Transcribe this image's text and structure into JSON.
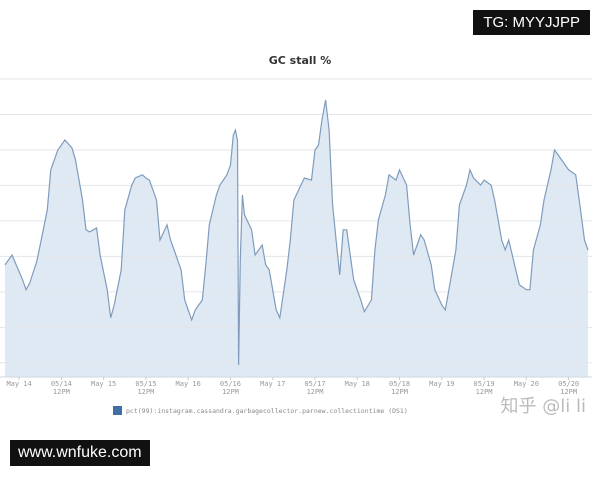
{
  "watermarks": {
    "top_right": "TG: MYYJJPP",
    "bottom_left": "www.wnfuke.com",
    "corner": "知乎 @li li"
  },
  "colors": {
    "line": "#7f9cbd",
    "fill": "#dfe9f3",
    "grid": "#e2e6ea",
    "legend_swatch": "#3f6fa3"
  },
  "chart_data": {
    "type": "area",
    "title": "GC stall %",
    "xlabel": "",
    "ylabel": "",
    "y_tick_labels_shown": false,
    "grid": true,
    "legend_placement": "bottom",
    "xlim": [
      "05/13 20:00",
      "05/20 17:30"
    ],
    "ylim": [
      0.6,
      9
    ],
    "y_gridlines": [
      1,
      2,
      3,
      4,
      5,
      6,
      7,
      8,
      9
    ],
    "x_ticks": [
      {
        "at": "05/14 00:00",
        "label": [
          "May 14"
        ]
      },
      {
        "at": "05/14 12:00",
        "label": [
          "05/14",
          "12PM"
        ]
      },
      {
        "at": "05/15 00:00",
        "label": [
          "May 15"
        ]
      },
      {
        "at": "05/15 12:00",
        "label": [
          "05/15",
          "12PM"
        ]
      },
      {
        "at": "05/16 00:00",
        "label": [
          "May 16"
        ]
      },
      {
        "at": "05/16 12:00",
        "label": [
          "05/16",
          "12PM"
        ]
      },
      {
        "at": "05/17 00:00",
        "label": [
          "May 17"
        ]
      },
      {
        "at": "05/17 12:00",
        "label": [
          "05/17",
          "12PM"
        ]
      },
      {
        "at": "05/18 00:00",
        "label": [
          "May 18"
        ]
      },
      {
        "at": "05/18 12:00",
        "label": [
          "05/18",
          "12PM"
        ]
      },
      {
        "at": "05/19 00:00",
        "label": [
          "May 19"
        ]
      },
      {
        "at": "05/19 12:00",
        "label": [
          "05/19",
          "12PM"
        ]
      },
      {
        "at": "05/20 00:00",
        "label": [
          "May 20"
        ]
      },
      {
        "at": "05/20 12:00",
        "label": [
          "05/20",
          "12PM"
        ]
      }
    ],
    "series": [
      {
        "name": "pct(99):instagram.cassandra.garbagecollector.parnew.collectiontime (DS1)",
        "points": [
          [
            "05/13 20:00",
            3.76
          ],
          [
            "05/13 22:00",
            4.04
          ],
          [
            "05/14 01:00",
            3.34
          ],
          [
            "05/14 02:00",
            3.06
          ],
          [
            "05/14 03:00",
            3.25
          ],
          [
            "05/14 05:00",
            3.85
          ],
          [
            "05/14 06:00",
            4.32
          ],
          [
            "05/14 08:00",
            5.31
          ],
          [
            "05/14 09:00",
            6.44
          ],
          [
            "05/14 11:00",
            7.0
          ],
          [
            "05/14 12:00",
            7.14
          ],
          [
            "05/14 13:00",
            7.28
          ],
          [
            "05/14 15:00",
            7.06
          ],
          [
            "05/14 16:00",
            6.72
          ],
          [
            "05/14 18:00",
            5.59
          ],
          [
            "05/14 19:00",
            4.75
          ],
          [
            "05/14 20:00",
            4.69
          ],
          [
            "05/14 22:00",
            4.8
          ],
          [
            "05/14 23:00",
            4.04
          ],
          [
            "05/15 01:00",
            3.06
          ],
          [
            "05/15 02:00",
            2.27
          ],
          [
            "05/15 03:00",
            2.63
          ],
          [
            "05/15 05:00",
            3.62
          ],
          [
            "05/15 06:00",
            5.31
          ],
          [
            "05/15 08:00",
            6.01
          ],
          [
            "05/15 09:00",
            6.21
          ],
          [
            "05/15 11:00",
            6.3
          ],
          [
            "05/15 12:00",
            6.21
          ],
          [
            "05/15 13:00",
            6.15
          ],
          [
            "05/15 15:00",
            5.59
          ],
          [
            "05/15 16:00",
            4.46
          ],
          [
            "05/15 18:00",
            4.89
          ],
          [
            "05/15 19:00",
            4.46
          ],
          [
            "05/15 20:00",
            4.18
          ],
          [
            "05/15 22:00",
            3.62
          ],
          [
            "05/15 23:00",
            2.77
          ],
          [
            "05/16 01:00",
            2.21
          ],
          [
            "05/16 02:00",
            2.49
          ],
          [
            "05/16 04:00",
            2.77
          ],
          [
            "05/16 05:00",
            3.76
          ],
          [
            "05/16 06:00",
            4.89
          ],
          [
            "05/16 08:00",
            5.73
          ],
          [
            "05/16 09:00",
            6.01
          ],
          [
            "05/16 11:00",
            6.3
          ],
          [
            "05/16 12:00",
            6.58
          ],
          [
            "05/16 12:48",
            7.42
          ],
          [
            "05/16 13:24",
            7.56
          ],
          [
            "05/16 14:00",
            7.27
          ],
          [
            "05/16 14:18",
            0.94
          ],
          [
            "05/16 14:48",
            3.9
          ],
          [
            "05/16 15:24",
            5.73
          ],
          [
            "05/16 16:00",
            5.17
          ],
          [
            "05/16 18:00",
            4.75
          ],
          [
            "05/16 19:00",
            4.04
          ],
          [
            "05/16 21:00",
            4.32
          ],
          [
            "05/16 22:00",
            3.76
          ],
          [
            "05/16 23:00",
            3.62
          ],
          [
            "05/17 01:00",
            2.49
          ],
          [
            "05/17 02:00",
            2.27
          ],
          [
            "05/17 04:00",
            3.62
          ],
          [
            "05/17 05:00",
            4.46
          ],
          [
            "05/17 06:00",
            5.59
          ],
          [
            "05/17 08:00",
            6.01
          ],
          [
            "05/17 09:00",
            6.21
          ],
          [
            "05/17 11:00",
            6.15
          ],
          [
            "05/17 12:00",
            7.0
          ],
          [
            "05/17 13:00",
            7.14
          ],
          [
            "05/17 14:00",
            7.85
          ],
          [
            "05/17 15:00",
            8.41
          ],
          [
            "05/17 16:00",
            7.56
          ],
          [
            "05/17 17:00",
            5.45
          ],
          [
            "05/17 18:00",
            4.46
          ],
          [
            "05/17 19:00",
            3.48
          ],
          [
            "05/17 20:00",
            4.75
          ],
          [
            "05/17 21:00",
            4.75
          ],
          [
            "05/17 22:00",
            4.04
          ],
          [
            "05/17 23:00",
            3.34
          ],
          [
            "05/18 01:00",
            2.77
          ],
          [
            "05/18 02:00",
            2.44
          ],
          [
            "05/18 04:00",
            2.77
          ],
          [
            "05/18 05:00",
            4.18
          ],
          [
            "05/18 06:00",
            5.03
          ],
          [
            "05/18 08:00",
            5.73
          ],
          [
            "05/18 09:00",
            6.3
          ],
          [
            "05/18 11:00",
            6.15
          ],
          [
            "05/18 12:00",
            6.44
          ],
          [
            "05/18 14:00",
            6.01
          ],
          [
            "05/18 15:00",
            4.89
          ],
          [
            "05/18 16:00",
            4.04
          ],
          [
            "05/18 18:00",
            4.61
          ],
          [
            "05/18 19:00",
            4.46
          ],
          [
            "05/18 21:00",
            3.76
          ],
          [
            "05/18 22:00",
            3.06
          ],
          [
            "05/19 00:00",
            2.63
          ],
          [
            "05/19 01:00",
            2.49
          ],
          [
            "05/19 02:00",
            3.06
          ],
          [
            "05/19 04:00",
            4.18
          ],
          [
            "05/19 05:00",
            5.45
          ],
          [
            "05/19 07:00",
            6.01
          ],
          [
            "05/19 08:00",
            6.44
          ],
          [
            "05/19 09:00",
            6.21
          ],
          [
            "05/19 11:00",
            6.01
          ],
          [
            "05/19 12:00",
            6.15
          ],
          [
            "05/19 14:00",
            6.01
          ],
          [
            "05/19 15:00",
            5.59
          ],
          [
            "05/19 17:00",
            4.46
          ],
          [
            "05/19 18:00",
            4.18
          ],
          [
            "05/19 19:00",
            4.46
          ],
          [
            "05/19 21:00",
            3.62
          ],
          [
            "05/19 22:00",
            3.2
          ],
          [
            "05/20 00:00",
            3.06
          ],
          [
            "05/20 01:00",
            3.06
          ],
          [
            "05/20 02:00",
            4.18
          ],
          [
            "05/20 04:00",
            4.89
          ],
          [
            "05/20 05:00",
            5.59
          ],
          [
            "05/20 07:00",
            6.44
          ],
          [
            "05/20 08:00",
            7.0
          ],
          [
            "05/20 09:00",
            6.86
          ],
          [
            "05/20 11:00",
            6.58
          ],
          [
            "05/20 12:00",
            6.44
          ],
          [
            "05/20 14:00",
            6.3
          ],
          [
            "05/20 15:00",
            5.59
          ],
          [
            "05/20 16:30",
            4.46
          ],
          [
            "05/20 17:30",
            4.18
          ]
        ]
      }
    ]
  }
}
